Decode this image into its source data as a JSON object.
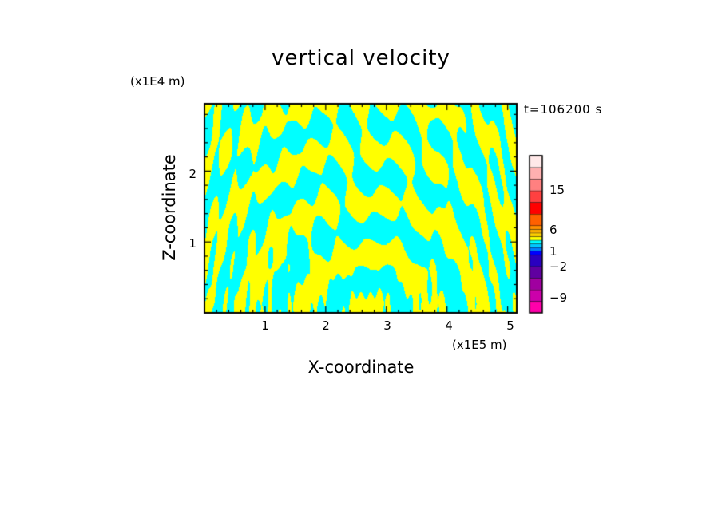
{
  "chart_data": {
    "type": "heatmap",
    "title": "vertical velocity",
    "xlabel": "X-coordinate",
    "ylabel": "Z-coordinate",
    "x_unit": "(x1E5 m)",
    "z_unit": "(x1E4 m)",
    "time_label": "t=106200 s",
    "xlim": [
      0,
      5.15
    ],
    "ylim": [
      0,
      2.95
    ],
    "x_ticks": [
      "1",
      "2",
      "3",
      "4",
      "5"
    ],
    "y_ticks": [
      "1",
      "2"
    ],
    "x_tick_values": [
      1,
      2,
      3,
      4,
      5
    ],
    "y_tick_values": [
      1,
      2
    ],
    "field_colors": {
      "negative": "#00ffff",
      "positive": "#ffff00"
    },
    "colorbar": {
      "labels": [
        {
          "text": "15",
          "value": 15
        },
        {
          "text": "6",
          "value": 6
        },
        {
          "text": "1",
          "value": 1
        },
        {
          "text": "−2",
          "value": -2
        },
        {
          "text": "−9",
          "value": -9
        }
      ],
      "levels": [
        {
          "color": "#ff00aa",
          "value": -12
        },
        {
          "color": "#cc00aa",
          "value": -9
        },
        {
          "color": "#a000a0",
          "value": -6
        },
        {
          "color": "#6000a0",
          "value": -4
        },
        {
          "color": "#2a00c0",
          "value": -3
        },
        {
          "color": "#0000ff",
          "value": -2
        },
        {
          "color": "#0080ff",
          "value": -1.5
        },
        {
          "color": "#00c8ff",
          "value": -1
        },
        {
          "color": "#00ffff",
          "value": -0.5
        },
        {
          "color": "#ffff00",
          "value": 0.5
        },
        {
          "color": "#ffd000",
          "value": 1
        },
        {
          "color": "#ffb000",
          "value": 1.5
        },
        {
          "color": "#ff9000",
          "value": 2
        },
        {
          "color": "#ff6000",
          "value": 4
        },
        {
          "color": "#ff0000",
          "value": 6
        },
        {
          "color": "#ff4040",
          "value": 9
        },
        {
          "color": "#ff8080",
          "value": 12
        },
        {
          "color": "#ffb0b0",
          "value": 15
        },
        {
          "color": "#ffe8e8",
          "value": 20
        }
      ]
    }
  }
}
